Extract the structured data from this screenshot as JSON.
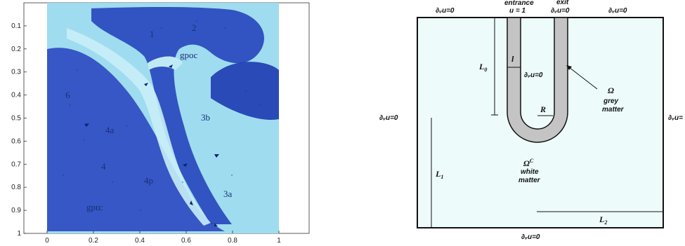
{
  "histology": {
    "y_ticks": [
      "0.1",
      "0.2",
      "0.3",
      "0.4",
      "0.5",
      "0.6",
      "0.7",
      "0.8",
      "0.9",
      "1"
    ],
    "x_ticks": [
      "0",
      "0.2",
      "0.4",
      "0.6",
      "0.8",
      "1"
    ],
    "labels": [
      "gpoc",
      "3b",
      "6",
      "4",
      "3a",
      "gprc",
      "4a",
      "4p",
      "2",
      "1"
    ]
  },
  "schematic": {
    "top_left_bc": "∂ᵥu=0",
    "entrance_label": "entrance",
    "entrance_value": "u = 1",
    "exit_label": "exit",
    "exit_bc": "∂ᵥu=0",
    "top_right_bc": "∂ᵥu=0",
    "left_bc": "∂ᵥu=0",
    "right_bc": "∂ᵥu=",
    "bottom_bc": "∂ᵥu=0",
    "inner_bc": "∂ᵥu=0",
    "L0": "L",
    "L0_sub": "0",
    "L1": "L",
    "L1_sub": "1",
    "L2": "L",
    "L2_sub": "2",
    "l": "l",
    "R": "R",
    "omega": "Ω",
    "grey_matter_1": "grey",
    "grey_matter_2": "matter",
    "omega_c": "Ω",
    "omega_c_sup": "C",
    "white_matter_1": "white",
    "white_matter_2": "matter"
  },
  "colors": {
    "tissue_dark": "#1f3fb8",
    "tissue_light": "#aee3f0",
    "schematic_bg": "#eefbfb",
    "grey_matter": "#c4c4c4"
  }
}
